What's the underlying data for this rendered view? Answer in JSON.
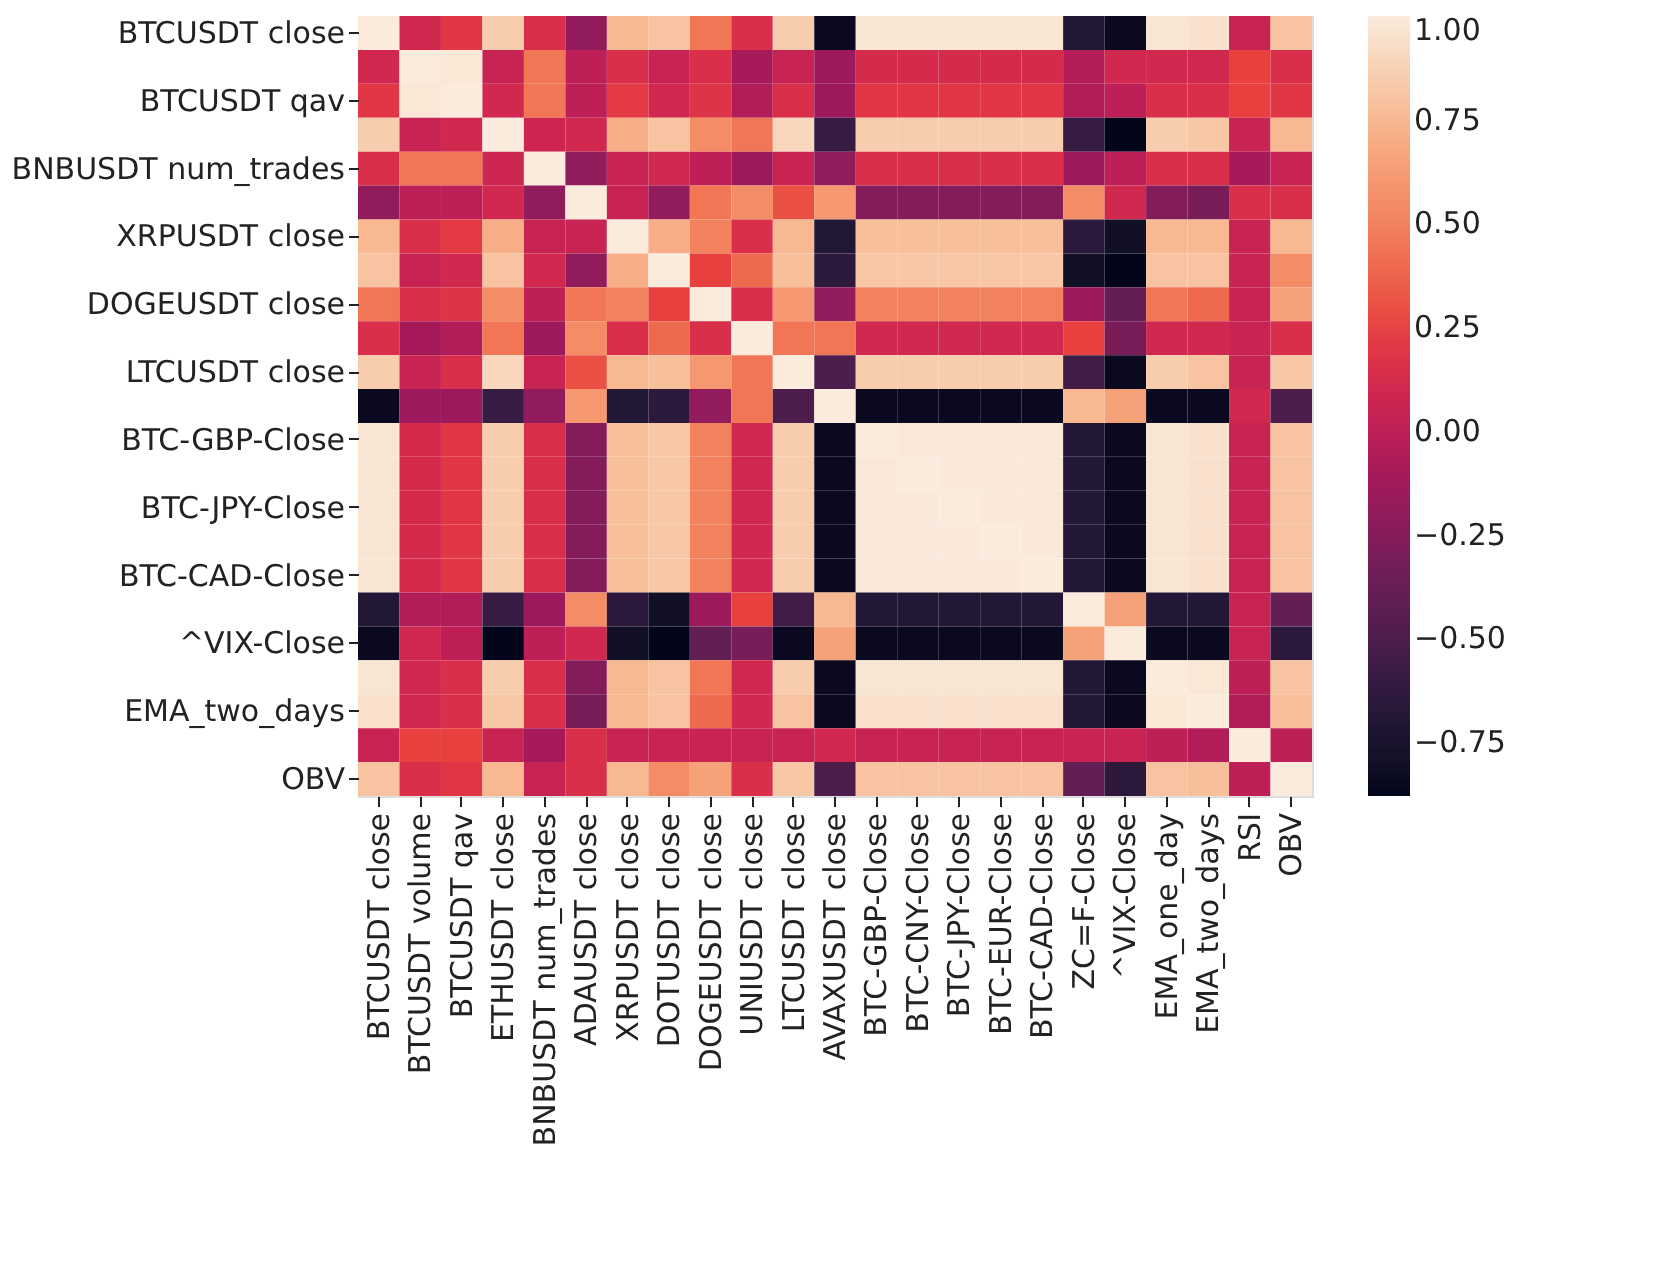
{
  "chart_data": {
    "type": "heatmap",
    "categories": [
      "BTCUSDT close",
      "BTCUSDT volume",
      "BTCUSDT qav",
      "ETHUSDT close",
      "BNBUSDT num_trades",
      "ADAUSDT close",
      "XRPUSDT close",
      "DOTUSDT close",
      "DOGEUSDT close",
      "UNIUSDT close",
      "LTCUSDT close",
      "AVAXUSDT close",
      "BTC-GBP-Close",
      "BTC-CNY-Close",
      "BTC-JPY-Close",
      "BTC-EUR-Close",
      "BTC-CAD-Close",
      "ZC=F-Close",
      "^VIX-Close",
      "EMA_one_day",
      "EMA_two_days",
      "RSI",
      "OBV"
    ],
    "y_categories": [
      "BTCUSDT close",
      null,
      "BTCUSDT qav",
      null,
      "BNBUSDT num_trades",
      null,
      "XRPUSDT close",
      null,
      "DOGEUSDT close",
      null,
      "LTCUSDT close",
      null,
      "BTC-GBP-Close",
      null,
      "BTC-JPY-Close",
      null,
      "BTC-CAD-Close",
      null,
      "^VIX-Close",
      null,
      "EMA_two_days",
      null,
      "OBV"
    ],
    "cells": [
      [
        1,
        0.1,
        0.2,
        0.85,
        0.15,
        -0.2,
        0.75,
        0.8,
        0.45,
        0.15,
        0.85,
        -0.85,
        0.97,
        0.97,
        0.97,
        0.97,
        0.97,
        -0.7,
        -0.85,
        0.97,
        0.95,
        0.05,
        0.8
      ],
      [
        0.1,
        1,
        0.98,
        0.05,
        0.45,
        0,
        0.15,
        0.05,
        0.15,
        -0.1,
        0.05,
        -0.15,
        0.12,
        0.12,
        0.12,
        0.12,
        0.12,
        -0.05,
        0.1,
        0.1,
        0.1,
        0.25,
        0.15
      ],
      [
        0.2,
        0.98,
        1,
        0.1,
        0.45,
        0,
        0.22,
        0.1,
        0.18,
        -0.05,
        0.15,
        -0.15,
        0.2,
        0.2,
        0.2,
        0.2,
        0.2,
        -0.05,
        0,
        0.15,
        0.15,
        0.25,
        0.2
      ],
      [
        0.85,
        0.05,
        0.1,
        1,
        0.08,
        0.1,
        0.7,
        0.8,
        0.55,
        0.45,
        0.9,
        -0.6,
        0.85,
        0.85,
        0.85,
        0.85,
        0.85,
        -0.6,
        -0.88,
        0.85,
        0.82,
        0.05,
        0.75
      ],
      [
        0.15,
        0.45,
        0.45,
        0.08,
        1,
        -0.2,
        0.05,
        0.1,
        0,
        -0.15,
        0.05,
        -0.2,
        0.15,
        0.15,
        0.15,
        0.15,
        0.15,
        -0.15,
        0,
        0.15,
        0.15,
        -0.1,
        0.05
      ],
      [
        -0.2,
        0,
        0,
        0.1,
        -0.2,
        1,
        0.05,
        -0.2,
        0.45,
        0.55,
        0.3,
        0.6,
        -0.25,
        -0.25,
        -0.25,
        -0.25,
        -0.25,
        0.55,
        0.1,
        -0.25,
        -0.3,
        0.15,
        0.15
      ],
      [
        0.75,
        0.15,
        0.22,
        0.7,
        0.05,
        0.05,
        1,
        0.7,
        0.5,
        0.15,
        0.75,
        -0.7,
        0.78,
        0.78,
        0.78,
        0.78,
        0.78,
        -0.65,
        -0.8,
        0.75,
        0.75,
        0.05,
        0.75
      ],
      [
        0.8,
        0.05,
        0.1,
        0.8,
        0.1,
        -0.2,
        0.7,
        1,
        0.25,
        0.4,
        0.78,
        -0.65,
        0.82,
        0.82,
        0.82,
        0.82,
        0.82,
        -0.8,
        -0.88,
        0.8,
        0.8,
        0.05,
        0.55
      ],
      [
        0.45,
        0.15,
        0.18,
        0.55,
        0,
        0.45,
        0.5,
        0.25,
        1,
        0.15,
        0.6,
        -0.2,
        0.5,
        0.5,
        0.5,
        0.5,
        0.5,
        -0.15,
        -0.4,
        0.45,
        0.4,
        0.05,
        0.65
      ],
      [
        0.15,
        -0.1,
        -0.05,
        0.45,
        -0.15,
        0.55,
        0.15,
        0.4,
        0.15,
        1,
        0.45,
        0.45,
        0.1,
        0.1,
        0.1,
        0.1,
        0.1,
        0.25,
        -0.3,
        0.1,
        0.1,
        0.05,
        0.15
      ],
      [
        0.85,
        0.05,
        0.15,
        0.9,
        0.05,
        0.3,
        0.75,
        0.78,
        0.6,
        0.45,
        1,
        -0.5,
        0.85,
        0.85,
        0.85,
        0.85,
        0.85,
        -0.55,
        -0.85,
        0.85,
        0.8,
        0.05,
        0.82
      ],
      [
        -0.85,
        -0.15,
        -0.15,
        -0.6,
        -0.2,
        0.6,
        -0.7,
        -0.65,
        -0.2,
        0.45,
        -0.5,
        1,
        -0.85,
        -0.85,
        -0.85,
        -0.85,
        -0.85,
        0.75,
        0.65,
        -0.85,
        -0.85,
        0.1,
        -0.5
      ],
      [
        0.97,
        0.12,
        0.2,
        0.85,
        0.15,
        -0.25,
        0.78,
        0.82,
        0.5,
        0.1,
        0.85,
        -0.85,
        1,
        0.99,
        0.99,
        0.99,
        0.99,
        -0.7,
        -0.85,
        0.97,
        0.95,
        0.05,
        0.8
      ],
      [
        0.97,
        0.12,
        0.2,
        0.85,
        0.15,
        -0.25,
        0.78,
        0.82,
        0.5,
        0.1,
        0.85,
        -0.85,
        0.99,
        1,
        0.99,
        0.99,
        0.99,
        -0.7,
        -0.85,
        0.97,
        0.95,
        0.05,
        0.8
      ],
      [
        0.97,
        0.12,
        0.2,
        0.85,
        0.15,
        -0.25,
        0.78,
        0.82,
        0.5,
        0.1,
        0.85,
        -0.85,
        0.99,
        0.99,
        1,
        0.99,
        0.99,
        -0.7,
        -0.85,
        0.97,
        0.95,
        0.05,
        0.8
      ],
      [
        0.97,
        0.12,
        0.2,
        0.85,
        0.15,
        -0.25,
        0.78,
        0.82,
        0.5,
        0.1,
        0.85,
        -0.85,
        0.99,
        0.99,
        0.99,
        1,
        0.99,
        -0.7,
        -0.85,
        0.97,
        0.95,
        0.05,
        0.8
      ],
      [
        0.97,
        0.12,
        0.2,
        0.85,
        0.15,
        -0.25,
        0.78,
        0.82,
        0.5,
        0.1,
        0.85,
        -0.85,
        0.99,
        0.99,
        0.99,
        0.99,
        1,
        -0.7,
        -0.85,
        0.97,
        0.95,
        0.05,
        0.8
      ],
      [
        -0.7,
        -0.05,
        -0.05,
        -0.6,
        -0.15,
        0.55,
        -0.65,
        -0.8,
        -0.15,
        0.25,
        -0.55,
        0.75,
        -0.7,
        -0.7,
        -0.7,
        -0.7,
        -0.7,
        1,
        0.65,
        -0.7,
        -0.7,
        0.05,
        -0.4
      ],
      [
        -0.85,
        0.1,
        0,
        -0.88,
        0,
        0.1,
        -0.8,
        -0.88,
        -0.4,
        -0.3,
        -0.85,
        0.65,
        -0.85,
        -0.85,
        -0.85,
        -0.85,
        -0.85,
        0.65,
        1,
        -0.85,
        -0.85,
        0.05,
        -0.65
      ],
      [
        0.97,
        0.1,
        0.15,
        0.85,
        0.15,
        -0.25,
        0.75,
        0.8,
        0.45,
        0.1,
        0.85,
        -0.85,
        0.97,
        0.97,
        0.97,
        0.97,
        0.97,
        -0.7,
        -0.85,
        1,
        0.98,
        0,
        0.8
      ],
      [
        0.95,
        0.1,
        0.15,
        0.82,
        0.15,
        -0.3,
        0.75,
        0.8,
        0.4,
        0.1,
        0.8,
        -0.85,
        0.95,
        0.95,
        0.95,
        0.95,
        0.95,
        -0.7,
        -0.85,
        0.98,
        1,
        -0.05,
        0.78
      ],
      [
        0.05,
        0.25,
        0.25,
        0.05,
        -0.1,
        0.15,
        0.05,
        0.05,
        0.05,
        0.05,
        0.05,
        0.1,
        0.05,
        0.05,
        0.05,
        0.05,
        0.05,
        0.05,
        0.05,
        0,
        -0.05,
        1,
        0
      ],
      [
        0.8,
        0.15,
        0.2,
        0.75,
        0.05,
        0.15,
        0.75,
        0.55,
        0.65,
        0.15,
        0.82,
        -0.5,
        0.8,
        0.8,
        0.8,
        0.8,
        0.8,
        -0.4,
        -0.65,
        0.8,
        0.78,
        0,
        1
      ]
    ],
    "clim": [
      -0.88,
      1.0
    ],
    "cticks": [
      {
        "value": 1.0,
        "label": "1.00"
      },
      {
        "value": 0.75,
        "label": "0.75"
      },
      {
        "value": 0.5,
        "label": "0.50"
      },
      {
        "value": 0.25,
        "label": "0.25"
      },
      {
        "value": 0.0,
        "label": "0.00"
      },
      {
        "value": -0.25,
        "label": "−0.25"
      },
      {
        "value": -0.5,
        "label": "−0.50"
      },
      {
        "value": -0.75,
        "label": "−0.75"
      }
    ],
    "grid": false
  }
}
